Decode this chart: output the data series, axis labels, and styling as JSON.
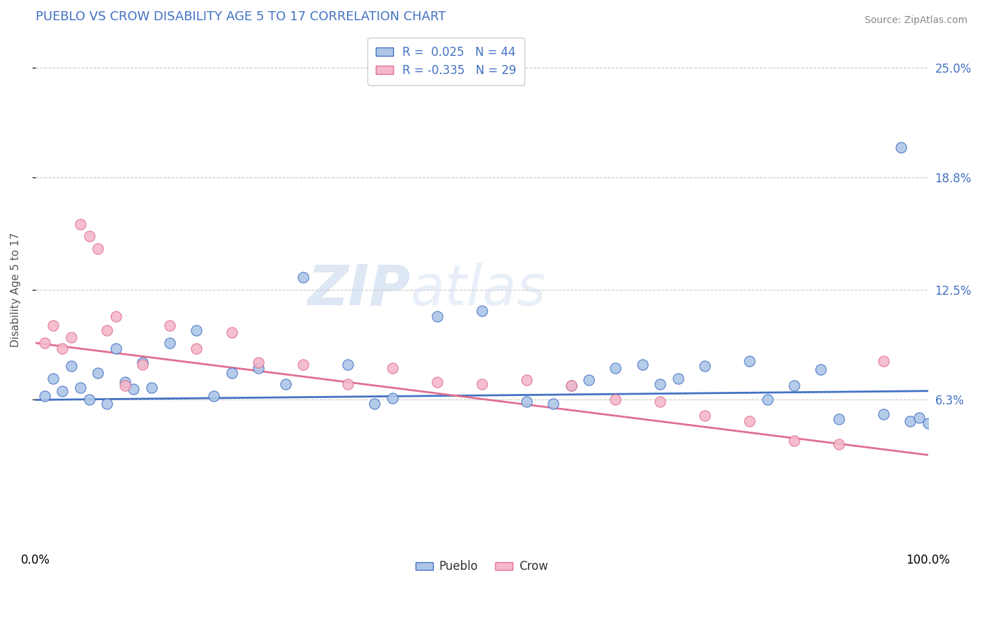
{
  "title": "PUEBLO VS CROW DISABILITY AGE 5 TO 17 CORRELATION CHART",
  "source": "Source: ZipAtlas.com",
  "ylabel": "Disability Age 5 to 17",
  "ytick_values": [
    6.3,
    12.5,
    18.8,
    25.0
  ],
  "xlim": [
    0,
    100
  ],
  "ylim": [
    -2,
    27
  ],
  "pueblo_color": "#adc6e8",
  "pueblo_line_color": "#4472c4",
  "crow_color": "#f4b8ca",
  "crow_line_color": "#e07090",
  "pueblo_R": 0.025,
  "pueblo_N": 44,
  "crow_R": -0.335,
  "crow_N": 29,
  "legend_label_1": "Pueblo",
  "legend_label_2": "Crow",
  "background_color": "#ffffff",
  "grid_color": "#c8c8c8",
  "title_color": "#4472c4",
  "watermark_zip": "ZIP",
  "watermark_atlas": "atlas",
  "pueblo_x": [
    1,
    2,
    3,
    4,
    5,
    6,
    7,
    8,
    9,
    10,
    11,
    12,
    13,
    15,
    18,
    20,
    22,
    25,
    28,
    30,
    35,
    38,
    40,
    45,
    50,
    55,
    58,
    60,
    62,
    65,
    68,
    70,
    72,
    75,
    80,
    82,
    85,
    88,
    90,
    95,
    97,
    98,
    99,
    100
  ],
  "pueblo_y": [
    6.5,
    7.5,
    6.8,
    8.2,
    7.0,
    6.3,
    7.8,
    6.1,
    9.2,
    7.3,
    6.9,
    8.4,
    7.0,
    9.5,
    10.2,
    6.5,
    7.8,
    8.1,
    7.2,
    13.2,
    8.3,
    6.1,
    6.4,
    11.0,
    11.3,
    6.2,
    6.1,
    7.1,
    7.4,
    8.1,
    8.3,
    7.2,
    7.5,
    8.2,
    8.5,
    6.3,
    7.1,
    8.0,
    5.2,
    5.5,
    20.5,
    5.1,
    5.3,
    5.0
  ],
  "crow_x": [
    1,
    2,
    3,
    4,
    5,
    6,
    7,
    8,
    9,
    10,
    12,
    15,
    18,
    22,
    25,
    30,
    35,
    40,
    45,
    50,
    55,
    60,
    65,
    70,
    75,
    80,
    85,
    90,
    95
  ],
  "crow_y": [
    9.5,
    10.5,
    9.2,
    9.8,
    16.2,
    15.5,
    14.8,
    10.2,
    11.0,
    7.1,
    8.3,
    10.5,
    9.2,
    10.1,
    8.4,
    8.3,
    7.2,
    8.1,
    7.3,
    7.2,
    7.4,
    7.1,
    6.3,
    6.2,
    5.4,
    5.1,
    4.0,
    3.8,
    8.5
  ]
}
